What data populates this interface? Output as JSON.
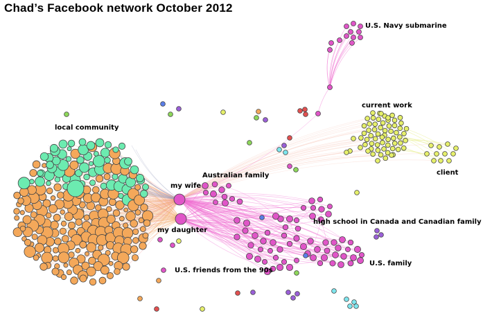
{
  "title": "Chad’s Facebook network October 2012",
  "labels": {
    "navy": "U.S. Navy submarine",
    "current_work": "current work",
    "client": "client",
    "local_community": "local community",
    "australian_family": "Australian family",
    "my_wife": "my wife",
    "my_daughter": "my daughter",
    "high_school": "high school in Canada and Canadian family",
    "us_family": "U.S. family",
    "us_friends_90s": "U.S. friends from the 90s"
  },
  "colors": {
    "orange": "#f4a85a",
    "teal": "#6cebb0",
    "magenta": "#e055c8",
    "yellow": "#e6f06a",
    "cyan": "#7ee6ee",
    "purple": "#9a5fd8",
    "red": "#e35050",
    "green": "#8ed85a",
    "blue": "#5a7ee8",
    "edge_pink": "#f06ad0",
    "edge_gray": "#9aa0c0",
    "edge_orange": "#f4b070",
    "edge_yellow": "#e8ef90"
  }
}
